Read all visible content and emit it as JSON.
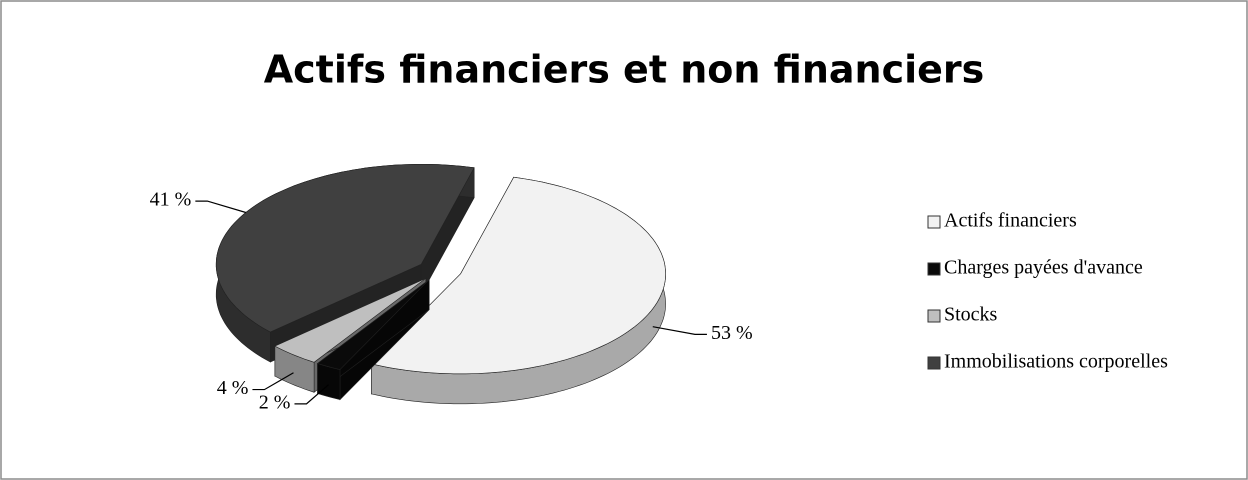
{
  "chart_data": {
    "type": "pie",
    "title": "Actifs financiers et non financiers",
    "categories": [
      "Actifs financiers",
      "Charges payées d'avance",
      "Stocks",
      "Immobilisations corporelles"
    ],
    "values": [
      53,
      2,
      4,
      41
    ],
    "value_labels": [
      "53 %",
      "2 %",
      "4 %",
      "41 %"
    ],
    "colors": [
      "#f2f2f2",
      "#0a0a0a",
      "#bfbfbf",
      "#404040"
    ],
    "legend": "right"
  }
}
